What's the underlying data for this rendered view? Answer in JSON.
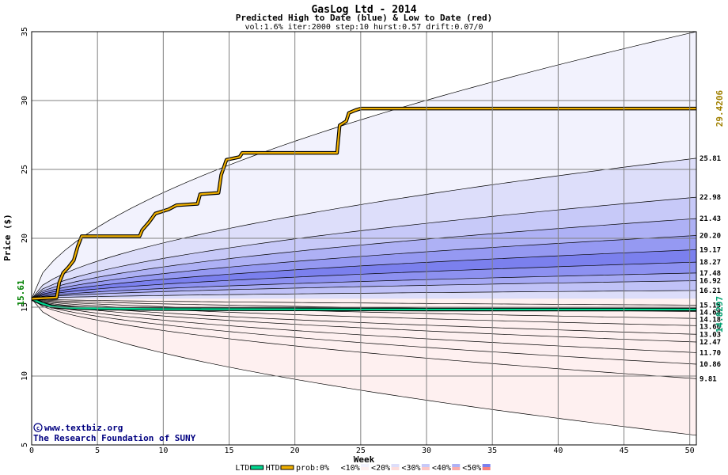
{
  "chart_data": {
    "type": "area",
    "title": "GasLog Ltd - 2014",
    "subtitle": "Predicted High to Date (blue) &  Low to Date (red)",
    "params": "vol:1.6% iter:2000 step:10 hurst:0.57 drift:0.07/0",
    "xlabel": "Week",
    "ylabel": "Price ($)",
    "xlim": [
      0,
      50.5
    ],
    "ylim": [
      5,
      35
    ],
    "xticks": [
      0,
      5,
      10,
      15,
      20,
      25,
      30,
      35,
      40,
      45,
      50
    ],
    "yticks": [
      5,
      10,
      15,
      20,
      25,
      30,
      35
    ],
    "grid": true,
    "start_price": 15.61,
    "start_label": "15.61",
    "high_final_label": "29.4206",
    "low_final_label": "14.8297",
    "level_labels": [
      {
        "value": 25.81,
        "text": "25.81"
      },
      {
        "value": 22.98,
        "text": "22.98"
      },
      {
        "value": 21.43,
        "text": "21.43"
      },
      {
        "value": 20.2,
        "text": "20.20"
      },
      {
        "value": 19.17,
        "text": "19.17"
      },
      {
        "value": 18.27,
        "text": "18.27"
      },
      {
        "value": 17.48,
        "text": "17.48"
      },
      {
        "value": 16.92,
        "text": "16.92"
      },
      {
        "value": 16.21,
        "text": "16.21"
      },
      {
        "value": 15.15,
        "text": "15.15"
      },
      {
        "value": 14.68,
        "text": "14.68"
      },
      {
        "value": 14.18,
        "text": "14.18"
      },
      {
        "value": 13.66,
        "text": "13.66"
      },
      {
        "value": 13.03,
        "text": "13.03"
      },
      {
        "value": 12.47,
        "text": "12.47"
      },
      {
        "value": 11.7,
        "text": "11.70"
      },
      {
        "value": 10.86,
        "text": "10.86"
      },
      {
        "value": 9.81,
        "text": "9.81"
      }
    ],
    "upper_bands": [
      {
        "final": 35.0,
        "fill": "#f2f2fd"
      },
      {
        "final": 25.81,
        "fill": "#dddefa"
      },
      {
        "final": 22.98,
        "fill": "#c7c9f8"
      },
      {
        "final": 21.43,
        "fill": "#aeb1f5"
      },
      {
        "final": 20.2,
        "fill": "#9599f2"
      },
      {
        "final": 19.17,
        "fill": "#7b80ee"
      },
      {
        "final": 18.27,
        "fill": "#8d91f1"
      },
      {
        "final": 17.48,
        "fill": "#a6a9f4"
      },
      {
        "final": 16.92,
        "fill": "#c0c2f7"
      },
      {
        "final": 16.21,
        "fill": "#dcddfa"
      }
    ],
    "lower_bands": [
      {
        "final": 15.15,
        "fill": "#fcdada"
      },
      {
        "final": 14.68,
        "fill": "#fbc5c5"
      },
      {
        "final": 14.18,
        "fill": "#f9aeae"
      },
      {
        "final": 13.66,
        "fill": "#f79696"
      },
      {
        "final": 13.03,
        "fill": "#f68080"
      },
      {
        "final": 12.47,
        "fill": "#f79191"
      },
      {
        "final": 11.7,
        "fill": "#f9abab"
      },
      {
        "final": 10.86,
        "fill": "#fbc6c6"
      },
      {
        "final": 9.81,
        "fill": "#fcdcdc"
      },
      {
        "final": 5.7,
        "fill": "#fef0f0"
      }
    ],
    "htd_line": {
      "name": "HTD",
      "color": "#f0b000",
      "points": [
        [
          0,
          15.61
        ],
        [
          1.9,
          15.7
        ],
        [
          2.1,
          16.8
        ],
        [
          2.4,
          17.5
        ],
        [
          2.8,
          17.9
        ],
        [
          3.2,
          18.4
        ],
        [
          3.5,
          19.4
        ],
        [
          3.8,
          20.15
        ],
        [
          8.2,
          20.15
        ],
        [
          8.4,
          20.6
        ],
        [
          8.9,
          21.15
        ],
        [
          9.4,
          21.8
        ],
        [
          10.4,
          22.1
        ],
        [
          11.0,
          22.4
        ],
        [
          12.6,
          22.5
        ],
        [
          12.8,
          23.2
        ],
        [
          14.2,
          23.3
        ],
        [
          14.4,
          24.6
        ],
        [
          14.8,
          25.7
        ],
        [
          15.8,
          25.9
        ],
        [
          16.0,
          26.2
        ],
        [
          23.2,
          26.2
        ],
        [
          23.4,
          28.2
        ],
        [
          23.9,
          28.5
        ],
        [
          24.1,
          29.1
        ],
        [
          24.6,
          29.3
        ],
        [
          25.0,
          29.42
        ],
        [
          50.5,
          29.42
        ]
      ]
    },
    "ltd_line": {
      "name": "LTD",
      "color": "#00d890",
      "points": [
        [
          0,
          15.61
        ],
        [
          0.7,
          15.3
        ],
        [
          1.5,
          15.05
        ],
        [
          3.0,
          14.95
        ],
        [
          5.0,
          14.9
        ],
        [
          10,
          14.86
        ],
        [
          20,
          14.84
        ],
        [
          30,
          14.83
        ],
        [
          40,
          14.83
        ],
        [
          50.5,
          14.83
        ]
      ]
    },
    "legend": [
      {
        "label": "LTD",
        "kind": "line",
        "color": "#00d890"
      },
      {
        "label": "HTD",
        "kind": "line",
        "color": "#f0b000"
      },
      {
        "label": "prob:0%",
        "kind": "swatch",
        "colors": [
          "#ffffff",
          "#ffffff"
        ]
      },
      {
        "label": "<10%",
        "kind": "swatch",
        "colors": [
          "#f2f2fd",
          "#fef0f0"
        ]
      },
      {
        "label": "<20%",
        "kind": "swatch",
        "colors": [
          "#dddefa",
          "#fcdcdc"
        ]
      },
      {
        "label": "<30%",
        "kind": "swatch",
        "colors": [
          "#c7c9f8",
          "#fbc6c6"
        ]
      },
      {
        "label": "<40%",
        "kind": "swatch",
        "colors": [
          "#aeb1f5",
          "#f9abab"
        ]
      },
      {
        "label": "<50%",
        "kind": "swatch",
        "colors": [
          "#7b80ee",
          "#f68080"
        ]
      }
    ],
    "credit_line1": "www.textbiz.org",
    "credit_line2": "The Research Foundation of SUNY"
  },
  "colors": {
    "grid": "#808080",
    "band_line": "#000000",
    "start_label": "#008000",
    "high_label": "#a08000",
    "low_label": "#00a070",
    "credit": "#000080"
  }
}
